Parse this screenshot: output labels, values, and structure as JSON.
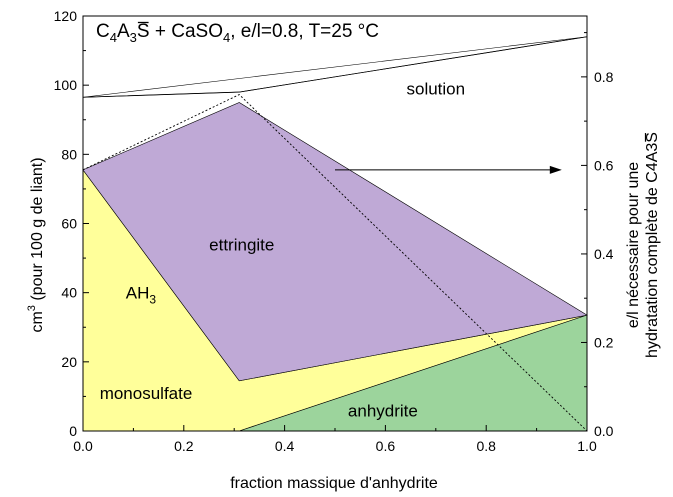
{
  "chart_data": {
    "type": "area",
    "title": {
      "prefix": "C",
      "sub1": "4",
      "mid": "A",
      "sub2": "3",
      "overbar": "S",
      "suffix": " + CaSO",
      "sub3": "4",
      "rest": ", e/l=0.8, T=25 °C"
    },
    "xlabel": "fraction massique d'anhydrite",
    "ylabel_left": {
      "prefix": "cm",
      "sup": "3",
      "rest": " (pour 100 g de liant)"
    },
    "ylabel_right": {
      "line1": "e/l nécessaire pour une",
      "line2_prefix": "hydratation complète de C4A3",
      "line2_overbar": "S"
    },
    "xlim": [
      0.0,
      1.0
    ],
    "ylim_left": [
      0,
      120
    ],
    "ylim_right": [
      0.0,
      0.9375
    ],
    "x_ticks": [
      "0.0",
      "0.2",
      "0.4",
      "0.6",
      "0.8",
      "1.0"
    ],
    "y_ticks_left": [
      "0",
      "20",
      "40",
      "60",
      "80",
      "100",
      "120"
    ],
    "y_ticks_right": [
      "0.0",
      "0.2",
      "0.4",
      "0.6",
      "0.8"
    ],
    "regions": [
      {
        "label": "monosulfate",
        "color": "#9ab7ec",
        "x": [
          0.0,
          0.31,
          0.0
        ],
        "y": [
          0,
          0,
          54.5
        ]
      },
      {
        "label_main": "AH",
        "label_sub": "3",
        "color": "#ffff9a",
        "x": [
          0.0,
          0.0,
          0.31,
          1.0,
          0.31,
          0.0
        ],
        "y": [
          54.5,
          75.5,
          14.5,
          33.5,
          0,
          0
        ]
      },
      {
        "label": "ettringite",
        "color": "#bfa9d6",
        "x": [
          0.0,
          0.31,
          1.0,
          0.31
        ],
        "y": [
          75.5,
          95,
          33.5,
          14.5
        ]
      },
      {
        "label": "anhydrite",
        "color": "#9cd49c",
        "x": [
          0.31,
          1.0,
          1.0
        ],
        "y": [
          0,
          33.5,
          0
        ]
      },
      {
        "label": "solution",
        "color": "#ffffff",
        "x": [
          0.0,
          0.31,
          1.0
        ],
        "y": [
          96.5,
          98,
          114
        ]
      }
    ],
    "solution_boundary": {
      "x": [
        0.0,
        0.31,
        1.0
      ],
      "y": [
        96.5,
        98,
        114
      ]
    },
    "water_requirement": {
      "axis": "right",
      "x": [
        0.0,
        0.31,
        1.0
      ],
      "y": [
        0.59,
        0.76,
        0.0
      ]
    }
  }
}
